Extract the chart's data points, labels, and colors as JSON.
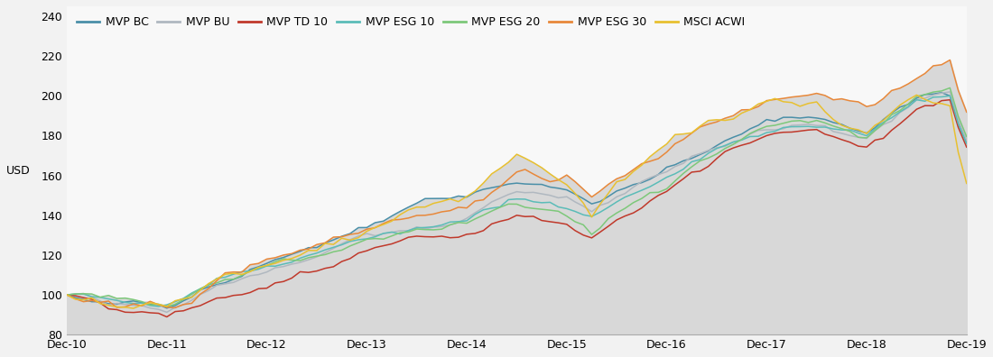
{
  "title": "",
  "ylabel": "USD",
  "ylim": [
    80,
    245
  ],
  "yticks": [
    80,
    100,
    120,
    140,
    160,
    180,
    200,
    220,
    240
  ],
  "background_color": "#f2f2f2",
  "plot_bg_color": "#f8f8f8",
  "fill_color": "#d8d8d8",
  "series_colors": {
    "MVP BC": "#4a8fa8",
    "MVP BU": "#b0b8c0",
    "MVP TD 10": "#c0392b",
    "MVP ESG 10": "#5bbcb8",
    "MVP ESG 20": "#7dc87a",
    "MVP ESG 30": "#e8883a",
    "MSCI ACWI": "#e8c030"
  },
  "x_labels": [
    "Dec-10",
    "Dec-11",
    "Dec-12",
    "Dec-13",
    "Dec-14",
    "Dec-15",
    "Dec-16",
    "Dec-17",
    "Dec-18",
    "Dec-19"
  ],
  "n_points": 109,
  "seed": 42
}
